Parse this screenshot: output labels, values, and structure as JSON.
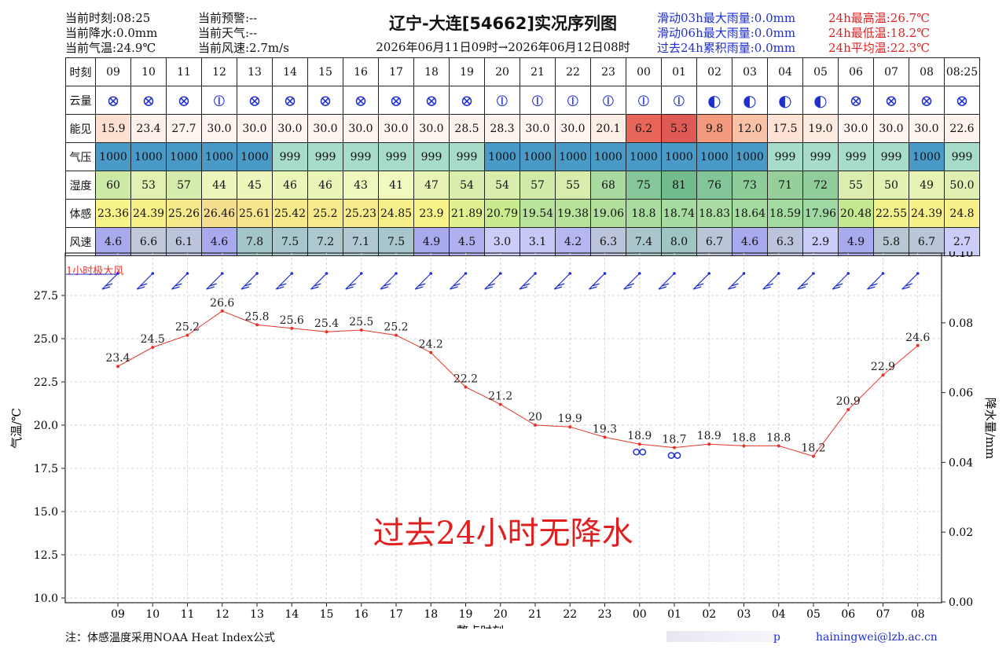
{
  "header": {
    "left": [
      "当前时刻:08:25",
      "当前降水:0.0mm",
      "当前气温:24.9℃"
    ],
    "mid": [
      "当前预警:--",
      "当前天气:--",
      "当前风速:2.7m/s"
    ],
    "rain": [
      "滑动03h最大雨量:0.0mm",
      "滑动06h最大雨量:0.0mm",
      "过去24h累积雨量:0.0mm"
    ],
    "temp": [
      "24h最高温:26.7℃",
      "24h最低温:18.2℃",
      "24h平均温:22.3℃"
    ],
    "title": "辽宁-大连[54662]实况序列图",
    "subtitle": "2026年06月11日09时→2026年06月12日08时"
  },
  "table": {
    "row_labels": [
      "时刻",
      "云量",
      "能见",
      "气压",
      "湿度",
      "体感",
      "风速"
    ],
    "hours": [
      "09",
      "10",
      "11",
      "12",
      "13",
      "14",
      "15",
      "16",
      "17",
      "18",
      "19",
      "20",
      "21",
      "22",
      "23",
      "00",
      "01",
      "02",
      "03",
      "04",
      "05",
      "06",
      "07",
      "08",
      "08:25"
    ],
    "cloud_symbols": [
      "⊗",
      "⊗",
      "⊗",
      "⦶",
      "⊗",
      "⊗",
      "⊗",
      "⊗",
      "⊗",
      "⊗",
      "⊗",
      "⦶",
      "⦶",
      "⦶",
      "⦶",
      "⦶",
      "⦶",
      "◐",
      "◐",
      "◐",
      "◐",
      "⊗",
      "⊗",
      "⊗",
      "⊗"
    ],
    "visibility": [
      "15.9",
      "23.4",
      "27.7",
      "30.0",
      "30.0",
      "30.0",
      "30.0",
      "30.0",
      "30.0",
      "30.0",
      "28.5",
      "28.3",
      "30.0",
      "30.0",
      "20.1",
      "6.2",
      "5.3",
      "9.8",
      "12.0",
      "17.5",
      "19.0",
      "30.0",
      "30.0",
      "30.0",
      "22.6"
    ],
    "pressure": [
      "1000",
      "1000",
      "1000",
      "1000",
      "1000",
      "999",
      "999",
      "999",
      "999",
      "999",
      "999",
      "1000",
      "1000",
      "1000",
      "1000",
      "1000",
      "1000",
      "1000",
      "1000",
      "999",
      "999",
      "999",
      "999",
      "1000",
      "999"
    ],
    "humidity": [
      "60",
      "53",
      "57",
      "44",
      "45",
      "46",
      "46",
      "43",
      "41",
      "47",
      "54",
      "54",
      "57",
      "55",
      "68",
      "75",
      "81",
      "76",
      "73",
      "71",
      "72",
      "55",
      "50",
      "49",
      "50.0"
    ],
    "feels_like": [
      "23.36",
      "24.39",
      "25.26",
      "26.46",
      "25.61",
      "25.42",
      "25.2",
      "25.23",
      "24.85",
      "23.9",
      "21.89",
      "20.79",
      "19.54",
      "19.38",
      "19.06",
      "18.8",
      "18.74",
      "18.83",
      "18.64",
      "18.59",
      "17.96",
      "20.48",
      "22.55",
      "24.39",
      "24.8"
    ],
    "wind_speed": [
      "4.6",
      "6.6",
      "6.1",
      "4.6",
      "7.8",
      "7.5",
      "7.2",
      "7.1",
      "7.5",
      "4.9",
      "4.5",
      "3.0",
      "3.1",
      "4.2",
      "6.3",
      "7.4",
      "8.0",
      "6.7",
      "4.6",
      "6.3",
      "2.9",
      "4.9",
      "5.8",
      "6.7",
      "2.7"
    ],
    "colors": {
      "visibility": [
        "#fde0d0",
        "#fdf0ea",
        "#fdf4ef",
        "#fff5f0",
        "#fff5f0",
        "#fff5f0",
        "#fff5f0",
        "#fff5f0",
        "#fff5f0",
        "#fff5f0",
        "#fdf3ee",
        "#fdf3ee",
        "#fff5f0",
        "#fff5f0",
        "#fdeee6",
        "#e8655a",
        "#e05a55",
        "#f39a7e",
        "#f9c2a7",
        "#fde2d5",
        "#fdeae1",
        "#fff5f0",
        "#fff5f0",
        "#fff5f0",
        "#fdf2ec"
      ],
      "pressure": [
        "#4a9ac8",
        "#4a9ac8",
        "#4a9ac8",
        "#4a9ac8",
        "#4a9ac8",
        "#a6dcc8",
        "#a6dcc8",
        "#a6dcc8",
        "#a6dcc8",
        "#a6dcc8",
        "#a6dcc8",
        "#4a9ac8",
        "#4a9ac8",
        "#4a9ac8",
        "#4a9ac8",
        "#4a9ac8",
        "#4a9ac8",
        "#4a9ac8",
        "#4a9ac8",
        "#a6dcc8",
        "#a6dcc8",
        "#a6dcc8",
        "#a6dcc8",
        "#4a9ac8",
        "#a6dcc8"
      ],
      "humidity": [
        "#cde9a6",
        "#e2f1b1",
        "#d6ecac",
        "#eef6bb",
        "#eef6bb",
        "#eaf5b8",
        "#eaf5b8",
        "#f0f8bd",
        "#f2f9be",
        "#e6f3b4",
        "#d9edac",
        "#d9edac",
        "#d3eba9",
        "#d8ecab",
        "#a9daa0",
        "#86c79a",
        "#72bb8d",
        "#82c598",
        "#8ecc99",
        "#96cf9a",
        "#90cd9a",
        "#dbeeaf",
        "#e3f2b3",
        "#e6f3b4",
        "#e0f0b2"
      ],
      "feels_like": [
        "#f7f58a",
        "#f8f18a",
        "#f6e98a",
        "#f5df8e",
        "#f6e58c",
        "#f6e98a",
        "#f6ea8a",
        "#f6ea8a",
        "#f7ef8a",
        "#f8f48a",
        "#e1f08e",
        "#caea8e",
        "#b9e39a",
        "#b8e29a",
        "#b2e09c",
        "#a9dc9e",
        "#a6dba0",
        "#a8dca0",
        "#a6dba0",
        "#a3daa0",
        "#9ed8a2",
        "#c4e890",
        "#f2f28a",
        "#f8f18a",
        "#f7ef8a"
      ],
      "wind_speed": [
        "#a9a9ee",
        "#c0c8da",
        "#bcc4dc",
        "#a9a9ee",
        "#a3c6c8",
        "#a8c7cc",
        "#aec8d0",
        "#b0c8d2",
        "#a8c7cc",
        "#a9a9ee",
        "#b0b0ee",
        "#ccccf8",
        "#c8c8f6",
        "#b6b6f0",
        "#bcc4dc",
        "#a9c6cc",
        "#9fc5c2",
        "#bac6d8",
        "#a9a9ee",
        "#bcc4dc",
        "#ccccf8",
        "#a9a9ee",
        "#b9c7d4",
        "#bac6d8",
        "#ccccf8"
      ]
    }
  },
  "chart_data": {
    "type": "line",
    "x": [
      "09",
      "10",
      "11",
      "12",
      "13",
      "14",
      "15",
      "16",
      "17",
      "18",
      "19",
      "20",
      "21",
      "22",
      "23",
      "00",
      "01",
      "02",
      "03",
      "04",
      "05",
      "06",
      "07",
      "08"
    ],
    "series": [
      {
        "values": [
          23.4,
          24.5,
          25.2,
          26.6,
          25.8,
          25.6,
          25.4,
          25.5,
          25.2,
          24.2,
          22.2,
          21.2,
          20.0,
          19.9,
          19.3,
          18.9,
          18.7,
          18.9,
          18.8,
          18.8,
          18.2,
          20.9,
          22.9,
          24.6
        ]
      }
    ],
    "xlabel": "整点时刻",
    "ylabel": "气温/℃",
    "y2label": "降水量/mm",
    "ylim": [
      10,
      28.5
    ],
    "yticks": [
      "10.0",
      "12.5",
      "15.0",
      "17.5",
      "20.0",
      "22.5",
      "25.0",
      "27.5"
    ],
    "y2lim": [
      0,
      0.1
    ],
    "y2ticks": [
      "0.00",
      "0.02",
      "0.04",
      "0.06",
      "0.08",
      "0.10"
    ],
    "grid": true,
    "no_precip_text": "过去24小时无降水",
    "wind_label": "1小时极大风",
    "fog_marker_hours": [
      "00",
      "01"
    ],
    "line_color": "#e8332a",
    "barb_color": "#1f2fd0"
  },
  "footer": {
    "note": "注：体感温度采用NOAA Heat Index公式",
    "watermark_tail": "p",
    "email": "hainingwei@lzb.ac.cn"
  }
}
